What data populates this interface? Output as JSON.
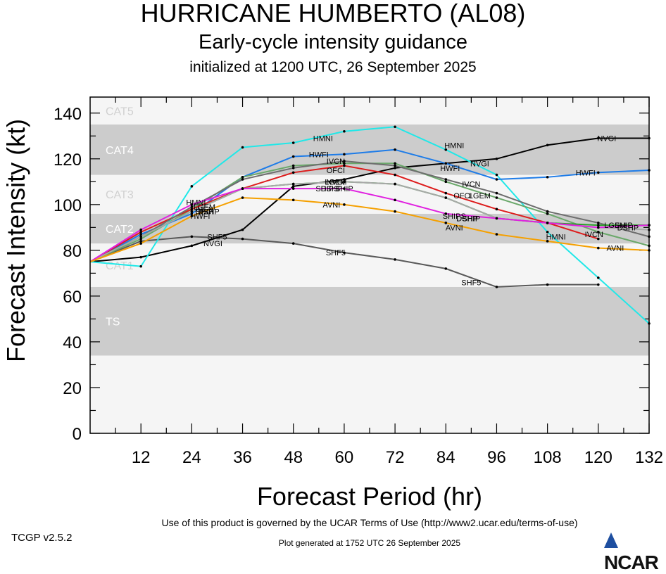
{
  "header": {
    "title": "HURRICANE HUMBERTO (AL08)",
    "subtitle": "Early-cycle intensity guidance",
    "init": "initialized at 1200 UTC, 26 September 2025"
  },
  "footer": {
    "terms": "Use of this product is governed by the UCAR Terms of Use (http://www2.ucar.edu/terms-of-use)",
    "version": "TCGP v2.5.2",
    "generated": "Plot generated at 1752 UTC   26 September 2025",
    "logo": "NCAR"
  },
  "chart_data": {
    "type": "line",
    "xlabel": "Forecast Period (hr)",
    "ylabel": "Forecast Intensity (kt)",
    "xlim": [
      0,
      132
    ],
    "ylim": [
      0,
      147
    ],
    "xticks": [
      12,
      24,
      36,
      48,
      60,
      72,
      84,
      96,
      108,
      120,
      132
    ],
    "yticks": [
      0,
      20,
      40,
      60,
      80,
      100,
      120,
      140
    ],
    "bands": [
      {
        "label": "TS",
        "min": 34,
        "max": 64,
        "color": "#cccccc"
      },
      {
        "label": "CAT1",
        "min": 64,
        "max": 83,
        "color": "#f5f5f5"
      },
      {
        "label": "CAT2",
        "min": 83,
        "max": 96,
        "color": "#cccccc"
      },
      {
        "label": "CAT3",
        "min": 96,
        "max": 113,
        "color": "#f5f5f5"
      },
      {
        "label": "CAT4",
        "min": 113,
        "max": 135,
        "color": "#cccccc"
      },
      {
        "label": "CAT5",
        "min": 135,
        "max": 147,
        "color": "#f5f5f5"
      }
    ],
    "series": [
      {
        "name": "SHF5",
        "color": "#595959",
        "x": [
          0,
          12,
          24,
          36,
          48,
          60,
          72,
          84,
          96,
          108,
          120
        ],
        "values": [
          75,
          84,
          86,
          85,
          83,
          79,
          76,
          72,
          64,
          65,
          65
        ],
        "labels": [
          [
            30,
            86
          ],
          [
            58,
            79
          ],
          [
            90,
            66
          ]
        ]
      },
      {
        "name": "NVGI",
        "color": "#000000",
        "x": [
          0,
          12,
          24,
          36,
          48,
          60,
          72,
          84,
          96,
          108,
          120,
          132
        ],
        "values": [
          75,
          77,
          82,
          89,
          108,
          111,
          116,
          118,
          120,
          126,
          129,
          129
        ],
        "labels": [
          [
            29,
            83
          ],
          [
            58,
            110
          ],
          [
            92,
            118
          ],
          [
            122,
            129
          ]
        ]
      },
      {
        "name": "HMNI",
        "color": "#20e8e8",
        "x": [
          0,
          12,
          24,
          36,
          48,
          60,
          72,
          84,
          96,
          108,
          120,
          132
        ],
        "values": [
          75,
          73,
          108,
          125,
          127,
          132,
          134,
          124,
          113,
          88,
          68,
          48
        ],
        "labels": [
          [
            25,
            101
          ],
          [
            55,
            129
          ],
          [
            86,
            126
          ],
          [
            110,
            86
          ]
        ]
      },
      {
        "name": "HWFI",
        "color": "#1e7ce8",
        "x": [
          0,
          12,
          24,
          36,
          48,
          60,
          72,
          84,
          96,
          108,
          120,
          132
        ],
        "values": [
          75,
          87,
          96,
          112,
          121,
          122,
          124,
          118,
          111,
          112,
          114,
          115
        ],
        "labels": [
          [
            26,
            95
          ],
          [
            54,
            122
          ],
          [
            85,
            116
          ],
          [
            117,
            114
          ]
        ]
      },
      {
        "name": "IVCN",
        "color": "#6aa86a",
        "x": [
          0,
          12,
          24,
          36,
          48,
          60,
          72,
          84,
          96,
          108,
          120,
          132
        ],
        "values": [
          75,
          85,
          98,
          112,
          117,
          118,
          118,
          110,
          103,
          96,
          88,
          82
        ],
        "labels": [
          [
            27,
            98
          ],
          [
            58,
            119
          ],
          [
            90,
            109
          ],
          [
            119,
            87
          ]
        ]
      },
      {
        "name": "OFCI",
        "color": "#dd1c1c",
        "x": [
          0,
          12,
          24,
          36,
          48,
          60,
          72,
          84,
          96,
          108,
          120
        ],
        "values": [
          75,
          88,
          98,
          107,
          114,
          117,
          113,
          105,
          98,
          92,
          85
        ],
        "labels": [
          [
            27,
            97
          ],
          [
            58,
            115
          ],
          [
            88,
            104
          ]
        ]
      },
      {
        "name": "LGEM",
        "color": "#6e6e6e",
        "x": [
          0,
          12,
          24,
          36,
          48,
          60,
          72,
          84,
          96,
          108,
          120,
          132
        ],
        "values": [
          75,
          86,
          99,
          111,
          116,
          119,
          117,
          111,
          105,
          97,
          92,
          86
        ],
        "labels": [
          [
            27,
            99
          ],
          [
            58,
            110
          ],
          [
            92,
            104
          ],
          [
            124,
            91
          ]
        ]
      },
      {
        "name": "SHIP",
        "color": "#2ba02b",
        "x": [
          0,
          12,
          24,
          36,
          48,
          60,
          72,
          84,
          96,
          108,
          120,
          132
        ],
        "values": [
          75,
          86,
          97,
          107,
          109,
          110,
          109,
          103,
          94,
          92,
          91,
          91
        ],
        "labels": [
          [
            27,
            97
          ],
          [
            60,
            107
          ],
          [
            90,
            94
          ],
          [
            126,
            91
          ]
        ]
      },
      {
        "name": "DSHP",
        "color": "#a8a8a8",
        "x": [
          0,
          12,
          24,
          36,
          48,
          60,
          72,
          84,
          96,
          108,
          120,
          132
        ],
        "values": [
          75,
          86,
          97,
          107,
          109,
          110,
          109,
          103,
          94,
          92,
          90,
          89
        ],
        "labels": [
          [
            28,
            97
          ],
          [
            57,
            107
          ],
          [
            89,
            94
          ],
          [
            127,
            90
          ]
        ]
      },
      {
        "name": "SHIPS",
        "color": "#e020e0",
        "x": [
          0,
          12,
          24,
          36,
          48,
          60,
          72,
          84,
          96,
          108,
          120,
          132
        ],
        "values": [
          75,
          89,
          100,
          107,
          107,
          107,
          102,
          96,
          94,
          92,
          90,
          91
        ],
        "labels": [
          [
            56,
            107
          ],
          [
            86,
            95
          ]
        ]
      },
      {
        "name": "AVNI",
        "color": "#f5a000",
        "x": [
          0,
          12,
          24,
          36,
          48,
          60,
          72,
          84,
          96,
          108,
          120,
          132
        ],
        "values": [
          75,
          83,
          95,
          103,
          102,
          100,
          97,
          92,
          87,
          84,
          81,
          80
        ],
        "labels": [
          [
            57,
            100
          ],
          [
            86,
            90
          ],
          [
            124,
            81
          ]
        ]
      }
    ]
  }
}
